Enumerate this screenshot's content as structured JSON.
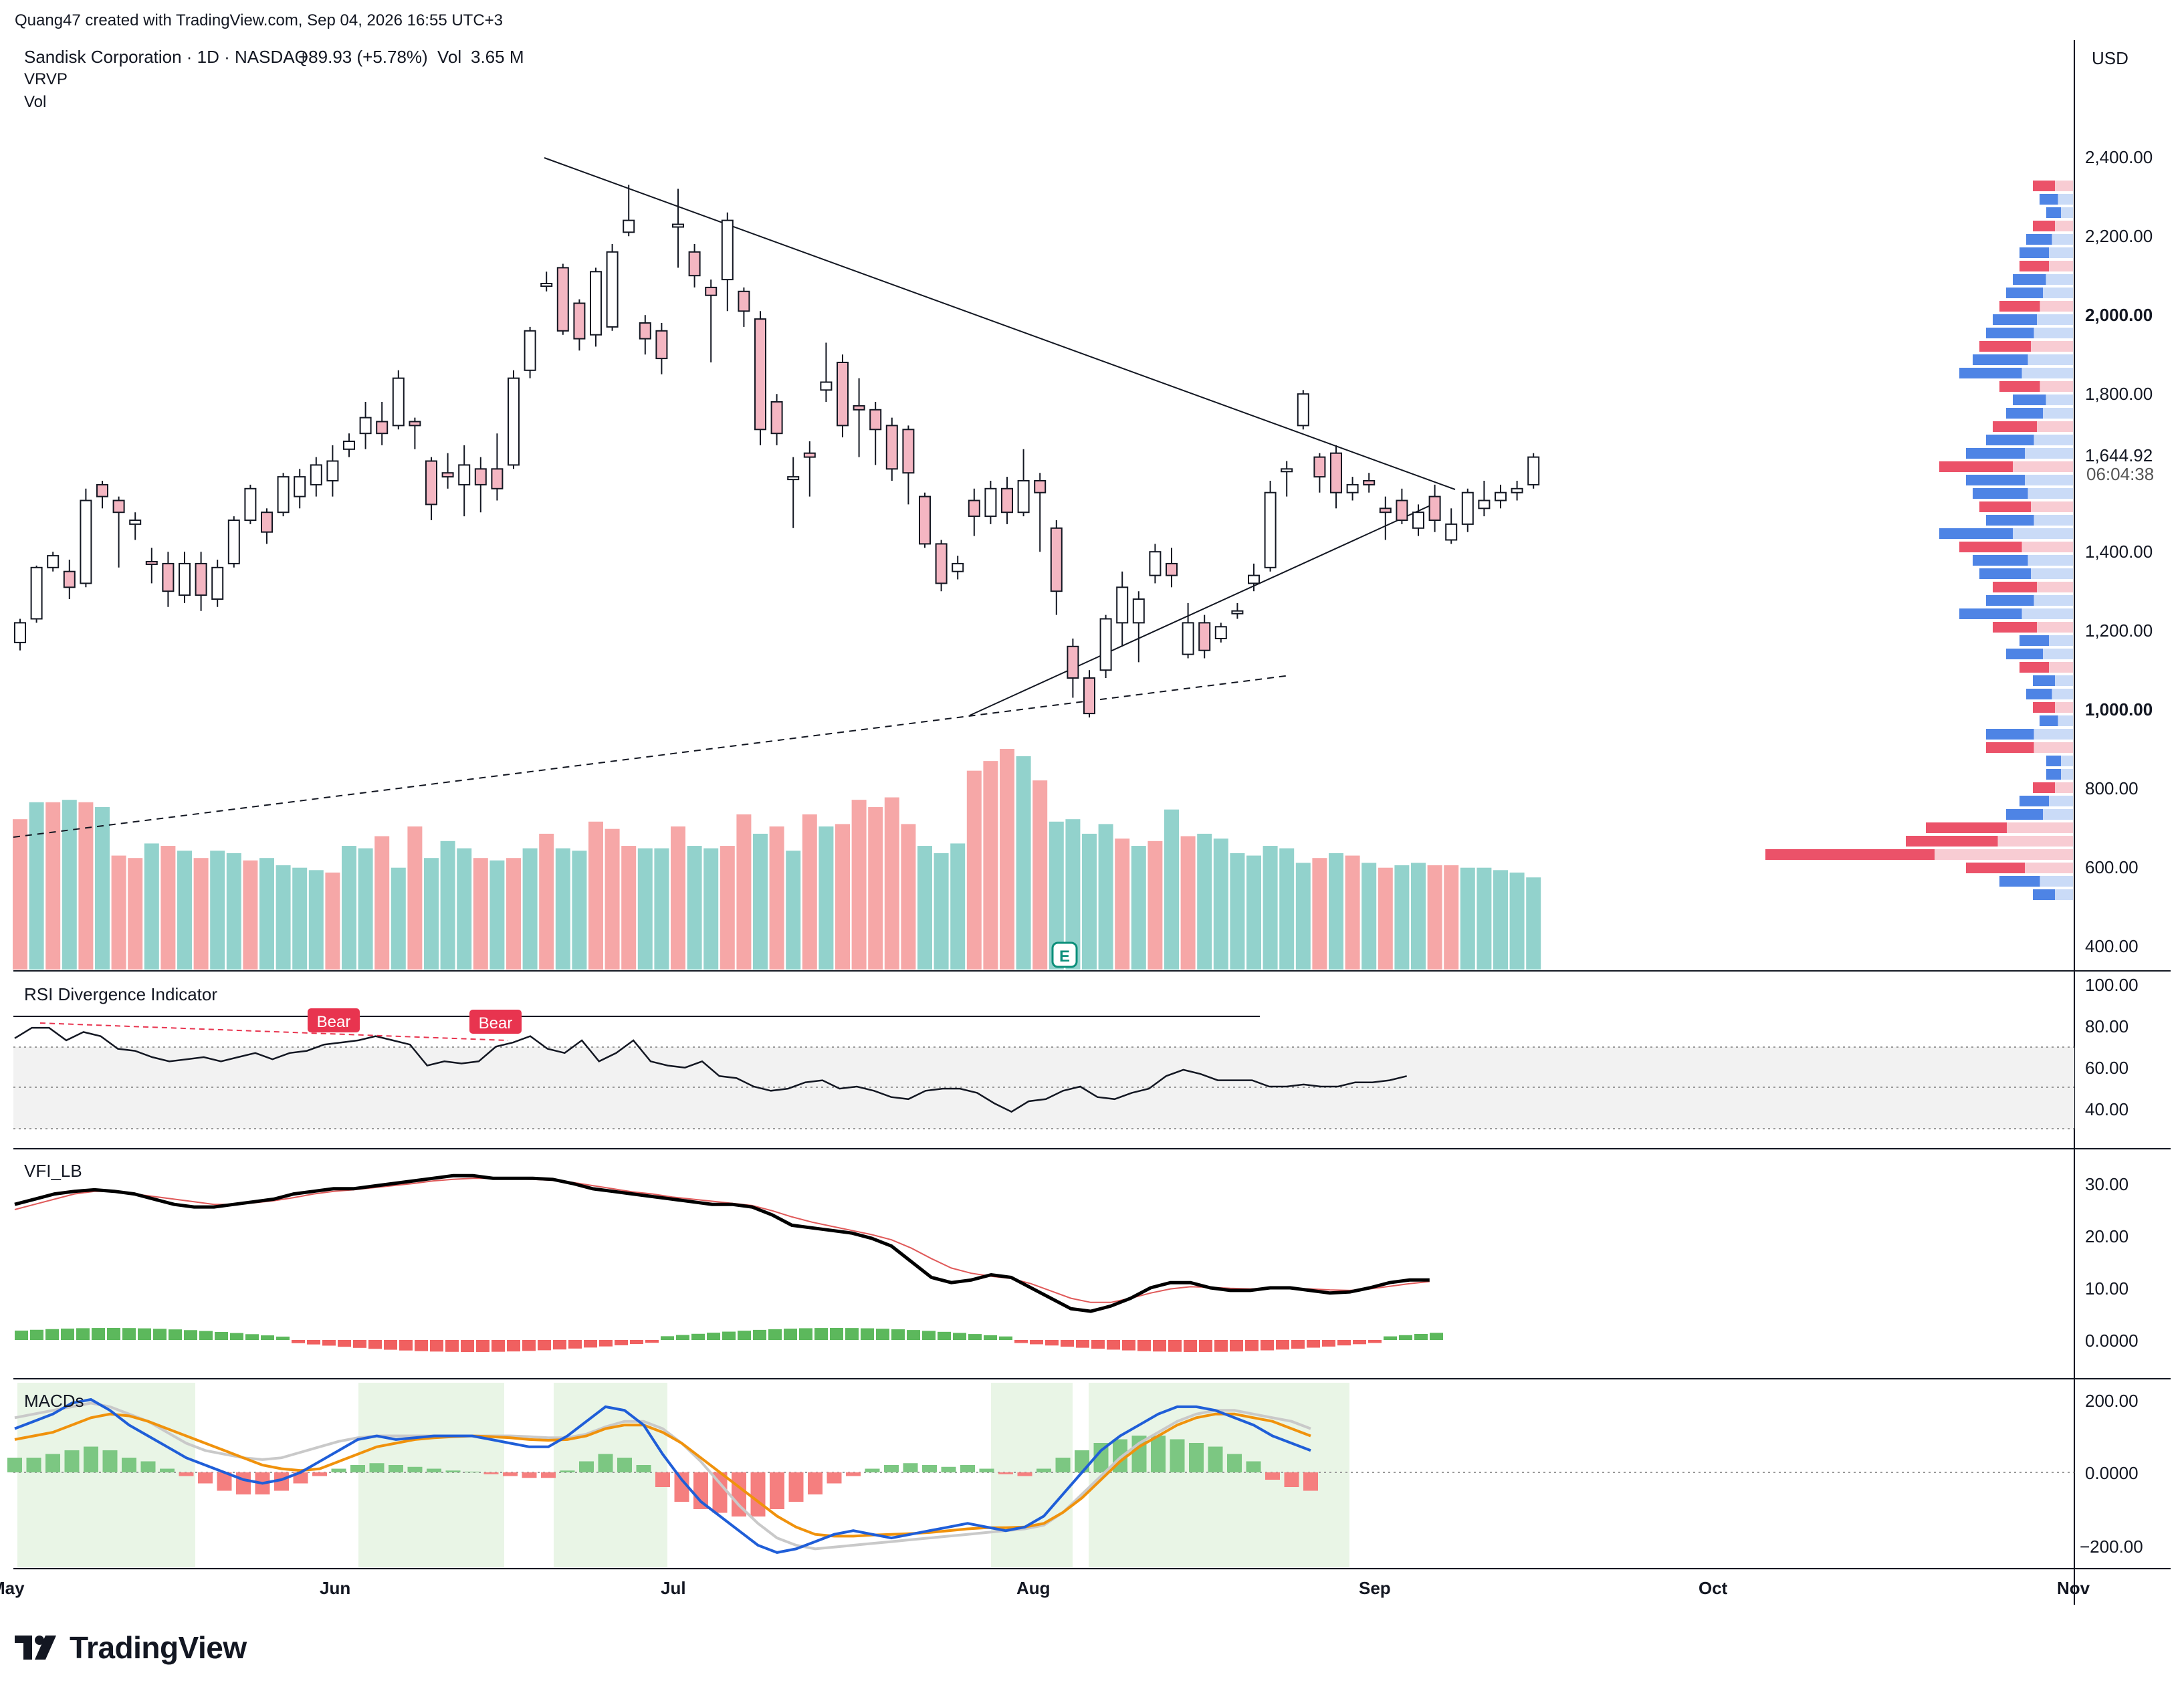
{
  "header": {
    "credit": "Quang47 created with TradingView.com, Sep 04, 2026 16:55 UTC+3",
    "symbol_line": "Sandisk Corporation · 1D · NASDAQ",
    "change": "+89.93 (+5.78%)",
    "vol_label": "Vol",
    "vol_value": "3.65 M",
    "indicator_vrvp": "VRVP",
    "indicator_vol": "Vol"
  },
  "price_axis": {
    "currency": "USD",
    "ticks": [
      "2,400.00",
      "2,200.00",
      "2,000.00",
      "1,800.00",
      "1,400.00",
      "1,200.00",
      "1,000.00",
      "800.00",
      "600.00",
      "400.00"
    ],
    "bold_ticks": [
      "2,000.00",
      "1,000.00"
    ],
    "last_price": "1,644.92",
    "countdown": "06:04:38"
  },
  "time_axis": {
    "labels": [
      "May",
      "Jun",
      "Jul",
      "Aug",
      "Sep",
      "Oct",
      "Nov"
    ]
  },
  "panes": {
    "rsi": {
      "title": "RSI Divergence Indicator",
      "ticks": [
        "100.00",
        "80.00",
        "60.00",
        "40.00"
      ],
      "bear_labels": [
        "Bear",
        "Bear"
      ]
    },
    "vfi": {
      "title": "VFI_LB",
      "ticks": [
        "30.00",
        "20.00",
        "10.00",
        "0.0000"
      ]
    },
    "macd": {
      "title": "MACDs",
      "ticks": [
        "200.00",
        "0.0000",
        "−200.00"
      ]
    }
  },
  "earnings_marker": "E",
  "footer": {
    "brand": "TradingView"
  },
  "colors": {
    "up_candle": "#ffffff",
    "down_candle": "#f4b6c2",
    "candle_border": "#131722",
    "vol_up": "#92d2cc",
    "vol_down": "#f6a7a7",
    "vfi_line": "#000000",
    "vfi_signal": "#e05a5a",
    "macd_line": "#1f5ed8",
    "macd_signal": "#f0920c",
    "macd_slow": "#c9c9c9",
    "hist_up": "#7cc782",
    "hist_down": "#f57f7f",
    "bear_label": "#e8344f"
  },
  "chart_data": {
    "type": "candlestick",
    "dates_note": "daily bars, May–Sep 2026",
    "ylim": [
      380,
      2480
    ],
    "candles": [
      [
        1190,
        1240,
        1170,
        1250
      ],
      [
        1250,
        1380,
        1240,
        1385
      ],
      [
        1380,
        1410,
        1370,
        1420
      ],
      [
        1370,
        1330,
        1300,
        1400
      ],
      [
        1340,
        1550,
        1330,
        1580
      ],
      [
        1590,
        1560,
        1530,
        1600
      ],
      [
        1550,
        1520,
        1380,
        1560
      ],
      [
        1490,
        1500,
        1450,
        1520
      ],
      [
        1395,
        1390,
        1340,
        1430
      ],
      [
        1390,
        1320,
        1280,
        1420
      ],
      [
        1310,
        1390,
        1290,
        1420
      ],
      [
        1390,
        1310,
        1270,
        1420
      ],
      [
        1300,
        1380,
        1280,
        1400
      ],
      [
        1390,
        1500,
        1380,
        1510
      ],
      [
        1500,
        1580,
        1490,
        1590
      ],
      [
        1520,
        1470,
        1440,
        1530
      ],
      [
        1520,
        1610,
        1510,
        1620
      ],
      [
        1560,
        1610,
        1530,
        1630
      ],
      [
        1590,
        1640,
        1560,
        1660
      ],
      [
        1600,
        1650,
        1560,
        1690
      ],
      [
        1680,
        1700,
        1660,
        1720
      ],
      [
        1720,
        1760,
        1680,
        1800
      ],
      [
        1750,
        1720,
        1690,
        1800
      ],
      [
        1740,
        1860,
        1730,
        1880
      ],
      [
        1750,
        1740,
        1680,
        1760
      ],
      [
        1650,
        1540,
        1500,
        1660
      ],
      [
        1620,
        1610,
        1580,
        1670
      ],
      [
        1590,
        1640,
        1510,
        1690
      ],
      [
        1630,
        1590,
        1520,
        1660
      ],
      [
        1630,
        1580,
        1550,
        1720
      ],
      [
        1640,
        1860,
        1630,
        1880
      ],
      [
        1880,
        1980,
        1860,
        1990
      ],
      [
        2100,
        2100,
        2080,
        2130
      ],
      [
        2140,
        1980,
        1970,
        2150
      ],
      [
        2050,
        1960,
        1930,
        2060
      ],
      [
        1970,
        2130,
        1940,
        2140
      ],
      [
        1990,
        2180,
        1980,
        2200
      ],
      [
        2230,
        2260,
        2220,
        2350
      ],
      [
        2000,
        1960,
        1920,
        2020
      ],
      [
        1980,
        1910,
        1870,
        2000
      ],
      [
        2250,
        2250,
        2140,
        2340
      ],
      [
        2180,
        2120,
        2090,
        2200
      ],
      [
        2090,
        2070,
        1900,
        2110
      ],
      [
        2110,
        2260,
        2030,
        2280
      ],
      [
        2080,
        2030,
        1990,
        2090
      ],
      [
        2010,
        1730,
        1690,
        2030
      ],
      [
        1800,
        1720,
        1690,
        1820
      ],
      [
        1610,
        1610,
        1480,
        1660
      ],
      [
        1670,
        1660,
        1560,
        1700
      ],
      [
        1830,
        1850,
        1800,
        1950
      ],
      [
        1900,
        1740,
        1710,
        1920
      ],
      [
        1790,
        1780,
        1660,
        1860
      ],
      [
        1780,
        1730,
        1640,
        1800
      ],
      [
        1740,
        1630,
        1600,
        1760
      ],
      [
        1730,
        1620,
        1540,
        1740
      ],
      [
        1560,
        1440,
        1430,
        1570
      ],
      [
        1440,
        1340,
        1320,
        1450
      ],
      [
        1370,
        1390,
        1350,
        1410
      ],
      [
        1550,
        1510,
        1460,
        1580
      ],
      [
        1510,
        1580,
        1490,
        1600
      ],
      [
        1580,
        1520,
        1490,
        1610
      ],
      [
        1520,
        1600,
        1510,
        1680
      ],
      [
        1600,
        1570,
        1420,
        1620
      ],
      [
        1480,
        1320,
        1260,
        1500
      ],
      [
        1180,
        1100,
        1050,
        1200
      ],
      [
        1100,
        1010,
        1000,
        1120
      ],
      [
        1120,
        1250,
        1100,
        1260
      ],
      [
        1240,
        1330,
        1180,
        1370
      ],
      [
        1240,
        1300,
        1140,
        1320
      ],
      [
        1360,
        1420,
        1340,
        1440
      ],
      [
        1390,
        1360,
        1330,
        1430
      ],
      [
        1160,
        1240,
        1150,
        1290
      ],
      [
        1240,
        1170,
        1150,
        1260
      ],
      [
        1200,
        1230,
        1190,
        1240
      ],
      [
        1270,
        1270,
        1250,
        1290
      ],
      [
        1340,
        1360,
        1320,
        1390
      ],
      [
        1380,
        1570,
        1370,
        1600
      ],
      [
        1630,
        1630,
        1560,
        1650
      ],
      [
        1740,
        1820,
        1730,
        1830
      ],
      [
        1660,
        1610,
        1570,
        1670
      ],
      [
        1670,
        1570,
        1530,
        1690
      ],
      [
        1570,
        1590,
        1550,
        1610
      ],
      [
        1600,
        1590,
        1570,
        1620
      ],
      [
        1530,
        1520,
        1450,
        1560
      ],
      [
        1550,
        1500,
        1490,
        1580
      ],
      [
        1480,
        1520,
        1460,
        1540
      ],
      [
        1560,
        1500,
        1470,
        1590
      ],
      [
        1450,
        1490,
        1440,
        1530
      ],
      [
        1490,
        1570,
        1470,
        1580
      ],
      [
        1530,
        1550,
        1510,
        1600
      ],
      [
        1550,
        1570,
        1530,
        1590
      ],
      [
        1570,
        1580,
        1550,
        1600
      ],
      [
        1590,
        1660,
        1580,
        1670
      ]
    ],
    "volume": [
      [
        0,
        620
      ],
      [
        1,
        690
      ],
      [
        0,
        690
      ],
      [
        1,
        700
      ],
      [
        0,
        690
      ],
      [
        1,
        670
      ],
      [
        0,
        470
      ],
      [
        0,
        460
      ],
      [
        1,
        520
      ],
      [
        0,
        510
      ],
      [
        1,
        490
      ],
      [
        0,
        460
      ],
      [
        1,
        490
      ],
      [
        1,
        480
      ],
      [
        0,
        450
      ],
      [
        1,
        460
      ],
      [
        1,
        430
      ],
      [
        1,
        420
      ],
      [
        1,
        410
      ],
      [
        0,
        400
      ],
      [
        1,
        510
      ],
      [
        1,
        500
      ],
      [
        0,
        550
      ],
      [
        1,
        420
      ],
      [
        0,
        590
      ],
      [
        1,
        460
      ],
      [
        1,
        530
      ],
      [
        1,
        500
      ],
      [
        0,
        460
      ],
      [
        1,
        450
      ],
      [
        0,
        460
      ],
      [
        1,
        500
      ],
      [
        0,
        560
      ],
      [
        1,
        500
      ],
      [
        1,
        490
      ],
      [
        0,
        610
      ],
      [
        0,
        580
      ],
      [
        0,
        510
      ],
      [
        1,
        500
      ],
      [
        1,
        500
      ],
      [
        0,
        590
      ],
      [
        1,
        510
      ],
      [
        1,
        500
      ],
      [
        0,
        510
      ],
      [
        0,
        640
      ],
      [
        1,
        560
      ],
      [
        0,
        590
      ],
      [
        1,
        490
      ],
      [
        0,
        640
      ],
      [
        1,
        590
      ],
      [
        0,
        600
      ],
      [
        0,
        700
      ],
      [
        0,
        670
      ],
      [
        0,
        710
      ],
      [
        0,
        600
      ],
      [
        1,
        510
      ],
      [
        1,
        480
      ],
      [
        1,
        520
      ],
      [
        0,
        820
      ],
      [
        0,
        860
      ],
      [
        0,
        910
      ],
      [
        1,
        880
      ],
      [
        0,
        780
      ],
      [
        1,
        610
      ],
      [
        1,
        620
      ],
      [
        1,
        560
      ],
      [
        1,
        600
      ],
      [
        0,
        540
      ],
      [
        1,
        510
      ],
      [
        0,
        530
      ],
      [
        1,
        660
      ],
      [
        0,
        550
      ],
      [
        1,
        560
      ],
      [
        1,
        540
      ],
      [
        1,
        480
      ],
      [
        1,
        470
      ],
      [
        1,
        510
      ],
      [
        1,
        500
      ],
      [
        1,
        440
      ],
      [
        0,
        460
      ],
      [
        1,
        480
      ],
      [
        0,
        470
      ],
      [
        1,
        440
      ],
      [
        0,
        420
      ],
      [
        1,
        430
      ],
      [
        1,
        440
      ],
      [
        0,
        430
      ],
      [
        0,
        430
      ],
      [
        1,
        420
      ],
      [
        1,
        420
      ],
      [
        1,
        410
      ],
      [
        1,
        400
      ],
      [
        1,
        380
      ]
    ],
    "rsi": [
      73,
      78,
      78,
      72,
      76,
      74,
      68,
      67,
      64,
      62,
      63,
      64,
      62,
      64,
      66,
      63,
      66,
      67,
      70,
      71,
      72,
      74,
      72,
      70,
      60,
      62,
      61,
      62,
      69,
      71,
      74,
      68,
      66,
      72,
      62,
      66,
      72,
      62,
      60,
      59,
      62,
      55,
      54,
      50,
      48,
      49,
      52,
      53,
      49,
      50,
      48,
      45,
      44,
      48,
      49,
      49,
      47,
      42,
      38,
      43,
      44,
      48,
      50,
      45,
      44,
      47,
      49,
      55,
      58,
      56,
      53,
      53,
      53,
      50,
      50,
      51,
      50,
      50,
      52,
      52,
      53,
      55
    ],
    "vfi": [
      26,
      27,
      28,
      28.5,
      28.8,
      28.5,
      28,
      27,
      26,
      25.5,
      25.5,
      26,
      26.5,
      27,
      28,
      28.5,
      29,
      29,
      29.5,
      30,
      30.5,
      31,
      31.5,
      31.5,
      31,
      31,
      31,
      30.8,
      30,
      29,
      28.5,
      28,
      27.5,
      27,
      26.5,
      26,
      26,
      25.5,
      24,
      22,
      21.5,
      21,
      20.5,
      19.5,
      18,
      15,
      12,
      11,
      11.5,
      12.5,
      12,
      10,
      8,
      6,
      5.5,
      6.5,
      8,
      10,
      11,
      11,
      10,
      9.5,
      9.5,
      10,
      10,
      9.5,
      9,
      9.2,
      10,
      11,
      11.5,
      11.5
    ],
    "vfi_signal": [
      25,
      26,
      27,
      28,
      28.5,
      28.5,
      28,
      27.5,
      27,
      26.5,
      26,
      26,
      26.3,
      26.7,
      27.3,
      28,
      28.5,
      28.8,
      29.2,
      29.6,
      30,
      30.5,
      30.8,
      31,
      31,
      30.9,
      30.8,
      30.6,
      30.2,
      29.6,
      29,
      28.4,
      28,
      27.4,
      27,
      26.6,
      26.2,
      25.8,
      24.8,
      23.6,
      22.6,
      21.8,
      21,
      20.2,
      19.2,
      17.6,
      15.6,
      13.8,
      12.8,
      12.2,
      11.8,
      10.8,
      9.4,
      8,
      7.2,
      7.2,
      8,
      9,
      9.8,
      10.2,
      10.1,
      9.9,
      9.8,
      9.9,
      9.9,
      9.8,
      9.6,
      9.5,
      9.8,
      10.3,
      10.8,
      11.2
    ],
    "macd": [
      120,
      140,
      160,
      190,
      200,
      170,
      130,
      100,
      70,
      40,
      20,
      0,
      -20,
      -30,
      -20,
      0,
      30,
      60,
      90,
      100,
      90,
      95,
      100,
      100,
      100,
      90,
      80,
      70,
      70,
      100,
      140,
      180,
      170,
      130,
      50,
      -20,
      -80,
      -120,
      -160,
      -200,
      -220,
      -210,
      -190,
      -170,
      -160,
      -170,
      -180,
      -170,
      -160,
      -150,
      -140,
      -150,
      -160,
      -150,
      -120,
      -60,
      0,
      60,
      100,
      130,
      160,
      180,
      180,
      170,
      150,
      130,
      100,
      80,
      60
    ],
    "macd_signal": [
      90,
      100,
      110,
      130,
      150,
      160,
      155,
      140,
      120,
      100,
      80,
      60,
      40,
      20,
      10,
      5,
      10,
      30,
      50,
      70,
      80,
      90,
      95,
      98,
      100,
      98,
      95,
      90,
      88,
      90,
      100,
      120,
      130,
      130,
      110,
      80,
      40,
      0,
      -40,
      -80,
      -120,
      -150,
      -170,
      -175,
      -175,
      -172,
      -170,
      -168,
      -165,
      -160,
      -155,
      -152,
      -152,
      -150,
      -140,
      -110,
      -70,
      -20,
      30,
      70,
      100,
      130,
      150,
      160,
      160,
      150,
      140,
      120,
      100
    ],
    "macd_slow": [
      150,
      160,
      170,
      180,
      190,
      180,
      160,
      140,
      110,
      80,
      60,
      50,
      40,
      35,
      40,
      55,
      70,
      85,
      95,
      100,
      100,
      100,
      100,
      100,
      100,
      100,
      100,
      98,
      95,
      95,
      105,
      125,
      140,
      140,
      120,
      80,
      30,
      -30,
      -90,
      -140,
      -180,
      -200,
      -210,
      -205,
      -200,
      -195,
      -190,
      -185,
      -180,
      -175,
      -170,
      -165,
      -160,
      -155,
      -145,
      -110,
      -60,
      -10,
      40,
      80,
      110,
      140,
      160,
      170,
      170,
      160,
      150,
      140,
      120
    ],
    "macd_hist": [
      40,
      40,
      50,
      60,
      70,
      60,
      40,
      30,
      10,
      -10,
      -30,
      -50,
      -60,
      -60,
      -50,
      -30,
      -10,
      10,
      20,
      25,
      20,
      15,
      10,
      5,
      2,
      -5,
      -10,
      -15,
      -15,
      5,
      30,
      50,
      40,
      20,
      -40,
      -80,
      -100,
      -110,
      -120,
      -120,
      -100,
      -80,
      -60,
      -30,
      -10,
      10,
      20,
      25,
      20,
      15,
      20,
      10,
      -5,
      -10,
      10,
      40,
      60,
      80,
      90,
      100,
      100,
      90,
      80,
      70,
      50,
      30,
      -20,
      -40,
      -50
    ],
    "volume_profile": "visible range volume profile on right side, peak near 640"
  }
}
